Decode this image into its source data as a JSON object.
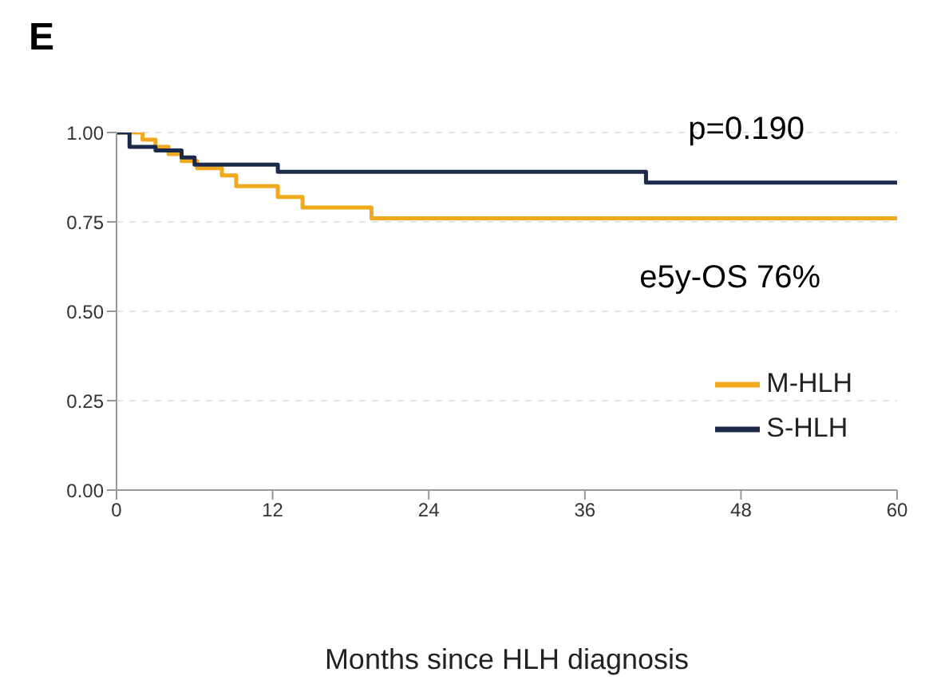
{
  "chart_data": {
    "type": "step",
    "title": "E",
    "xlabel": "Months since HLH diagnosis",
    "xlim": [
      0,
      60
    ],
    "xticks": [
      0,
      12,
      24,
      36,
      48,
      60
    ],
    "ylim": [
      0,
      1
    ],
    "yticks": [
      {
        "value": 0,
        "label": "0.00"
      },
      {
        "value": 0.25,
        "label": "0.25"
      },
      {
        "value": 0.5,
        "label": "0.50"
      },
      {
        "value": 0.75,
        "label": "0.75"
      },
      {
        "value": 1,
        "label": "1.00"
      }
    ],
    "grid": "y",
    "legend": "bottom right",
    "marker": "none",
    "line_style": "solid",
    "annotations": [
      "p=0.190",
      "e5y-OS 76%"
    ],
    "series": [
      {
        "name": "M-HLH",
        "color": "#f0a91c",
        "x": [
          0,
          2,
          3,
          4,
          5,
          6.2,
          8.1,
          9.2,
          12.4,
          14.3,
          19.6,
          60
        ],
        "values": [
          1,
          0.98,
          0.96,
          0.94,
          0.92,
          0.9,
          0.88,
          0.85,
          0.82,
          0.79,
          0.76,
          0.76
        ]
      },
      {
        "name": "S-HLH",
        "color": "#1b2a4a",
        "x": [
          0,
          1,
          3,
          5,
          6,
          12.4,
          40.7,
          60
        ],
        "values": [
          1,
          0.96,
          0.95,
          0.93,
          0.91,
          0.89,
          0.86,
          0.86
        ]
      }
    ]
  }
}
